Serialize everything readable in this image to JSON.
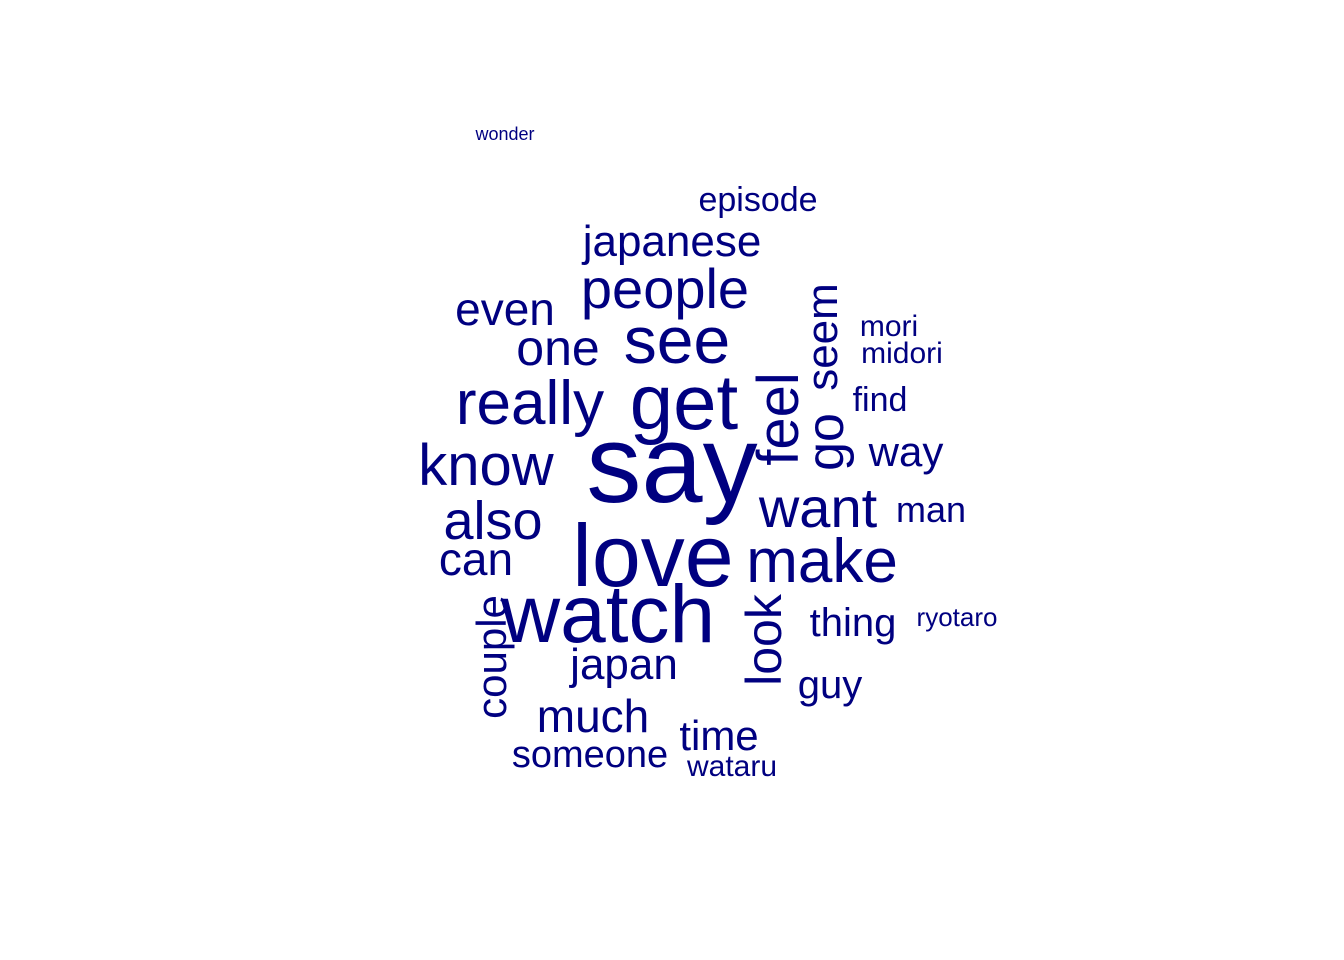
{
  "cloud": {
    "color": "#000080",
    "words": [
      "say",
      "get",
      "love",
      "watch",
      "really",
      "see",
      "make",
      "know",
      "people",
      "want",
      "feel",
      "also",
      "japanese",
      "seem",
      "one",
      "go",
      "look",
      "can",
      "even",
      "time",
      "much",
      "japan",
      "couple",
      "way",
      "guy",
      "someone",
      "thing",
      "man",
      "episode",
      "find",
      "mori",
      "midori",
      "wataru",
      "ryotaro",
      "wonder"
    ]
  }
}
